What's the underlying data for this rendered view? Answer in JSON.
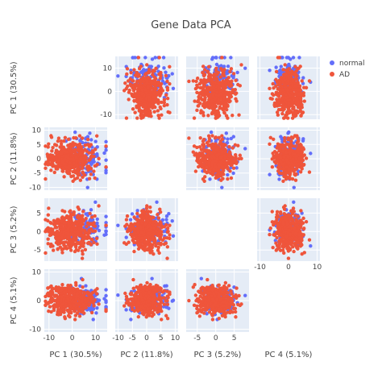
{
  "chart_data": {
    "type": "scatter",
    "title": "Gene Data PCA",
    "components": [
      "PC 1 (30.5%)",
      "PC 2 (11.8%)",
      "PC 3 (5.2%)",
      "PC 4 (5.1%)"
    ],
    "ranges": [
      [
        -12,
        15
      ],
      [
        -11,
        11
      ],
      [
        -8,
        9
      ],
      [
        -11,
        11
      ]
    ],
    "xticks": [
      [
        -10,
        0,
        10
      ],
      [
        -10,
        -5,
        0,
        5,
        10
      ],
      [
        -5,
        0,
        5
      ],
      [
        -10,
        0,
        10
      ]
    ],
    "yticks": [
      [
        -10,
        0,
        10
      ],
      [
        -10,
        -5,
        0,
        5,
        10
      ],
      [
        -5,
        0,
        5
      ],
      [
        -10,
        0,
        10
      ]
    ],
    "legend_position": "top-right",
    "grid": true,
    "series": [
      {
        "name": "normal",
        "color": "#636efa",
        "approx_centroid": [
          6,
          1,
          1,
          0
        ],
        "approx_spread": [
          4,
          4,
          2.5,
          2.5
        ],
        "point_count_estimate": 120
      },
      {
        "name": "AD",
        "color": "#ef553b",
        "approx_centroid": [
          -1,
          0,
          0,
          0
        ],
        "approx_spread": [
          5,
          3,
          2.5,
          2.5
        ],
        "point_count_estimate": 420
      }
    ]
  }
}
